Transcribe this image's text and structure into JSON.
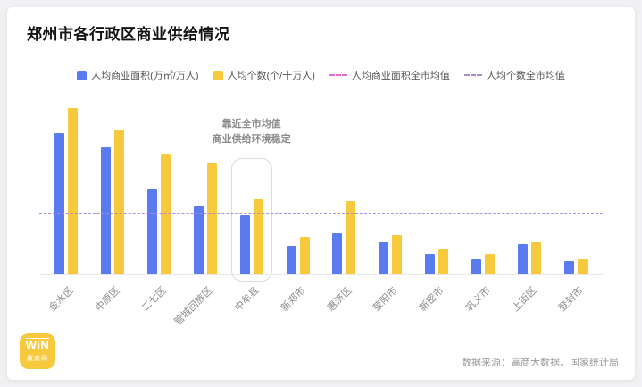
{
  "header": {
    "title": "郑州市各行政区商业供给情况"
  },
  "legend": [
    {
      "type": "square",
      "color": "#5B7CF0",
      "label": "人均商业面积(万㎡/万人)"
    },
    {
      "type": "square",
      "color": "#F7C93C",
      "label": "人均个数(个/十万人)"
    },
    {
      "type": "dash",
      "color": "#E36BD2",
      "label": "人均商业面积全市均值"
    },
    {
      "type": "dash",
      "color": "#A78BD4",
      "label": "人均个数全市均值"
    }
  ],
  "chart_data": {
    "type": "bar",
    "title": "郑州市各行政区商业供给情况",
    "categories": [
      "金水区",
      "中原区",
      "二七区",
      "管城回族区",
      "中牟县",
      "新郑市",
      "惠济区",
      "荥阳市",
      "新密市",
      "巩义市",
      "上街区",
      "登封市"
    ],
    "series": [
      {
        "name": "人均商业面积(万㎡/万人)",
        "color": "#5B7CF0",
        "values": [
          83,
          75,
          50,
          40,
          35,
          17,
          24,
          19,
          12,
          9,
          18,
          8
        ]
      },
      {
        "name": "人均个数(个/十万人)",
        "color": "#F7C93C",
        "values": [
          98,
          85,
          71,
          66,
          44,
          22,
          43,
          23,
          15,
          12,
          19,
          9
        ]
      }
    ],
    "reference_lines": [
      {
        "name": "人均个数全市均值",
        "value": 36,
        "color": "#A78BD4"
      },
      {
        "name": "人均商业面积全市均值",
        "value": 30,
        "color": "#E36BD2"
      }
    ],
    "ylim": [
      0,
      100
    ],
    "grid": false,
    "legend_position": "top",
    "highlight": {
      "category": "中牟县",
      "note_lines": [
        "靠近全市均值",
        "商业供给环境稳定"
      ]
    }
  },
  "footer": {
    "logo_mark": "WiN",
    "logo_sub": "赢商网",
    "logo_color": "#F7C93C",
    "source": "数据来源：赢商大数据、国家统计局"
  }
}
